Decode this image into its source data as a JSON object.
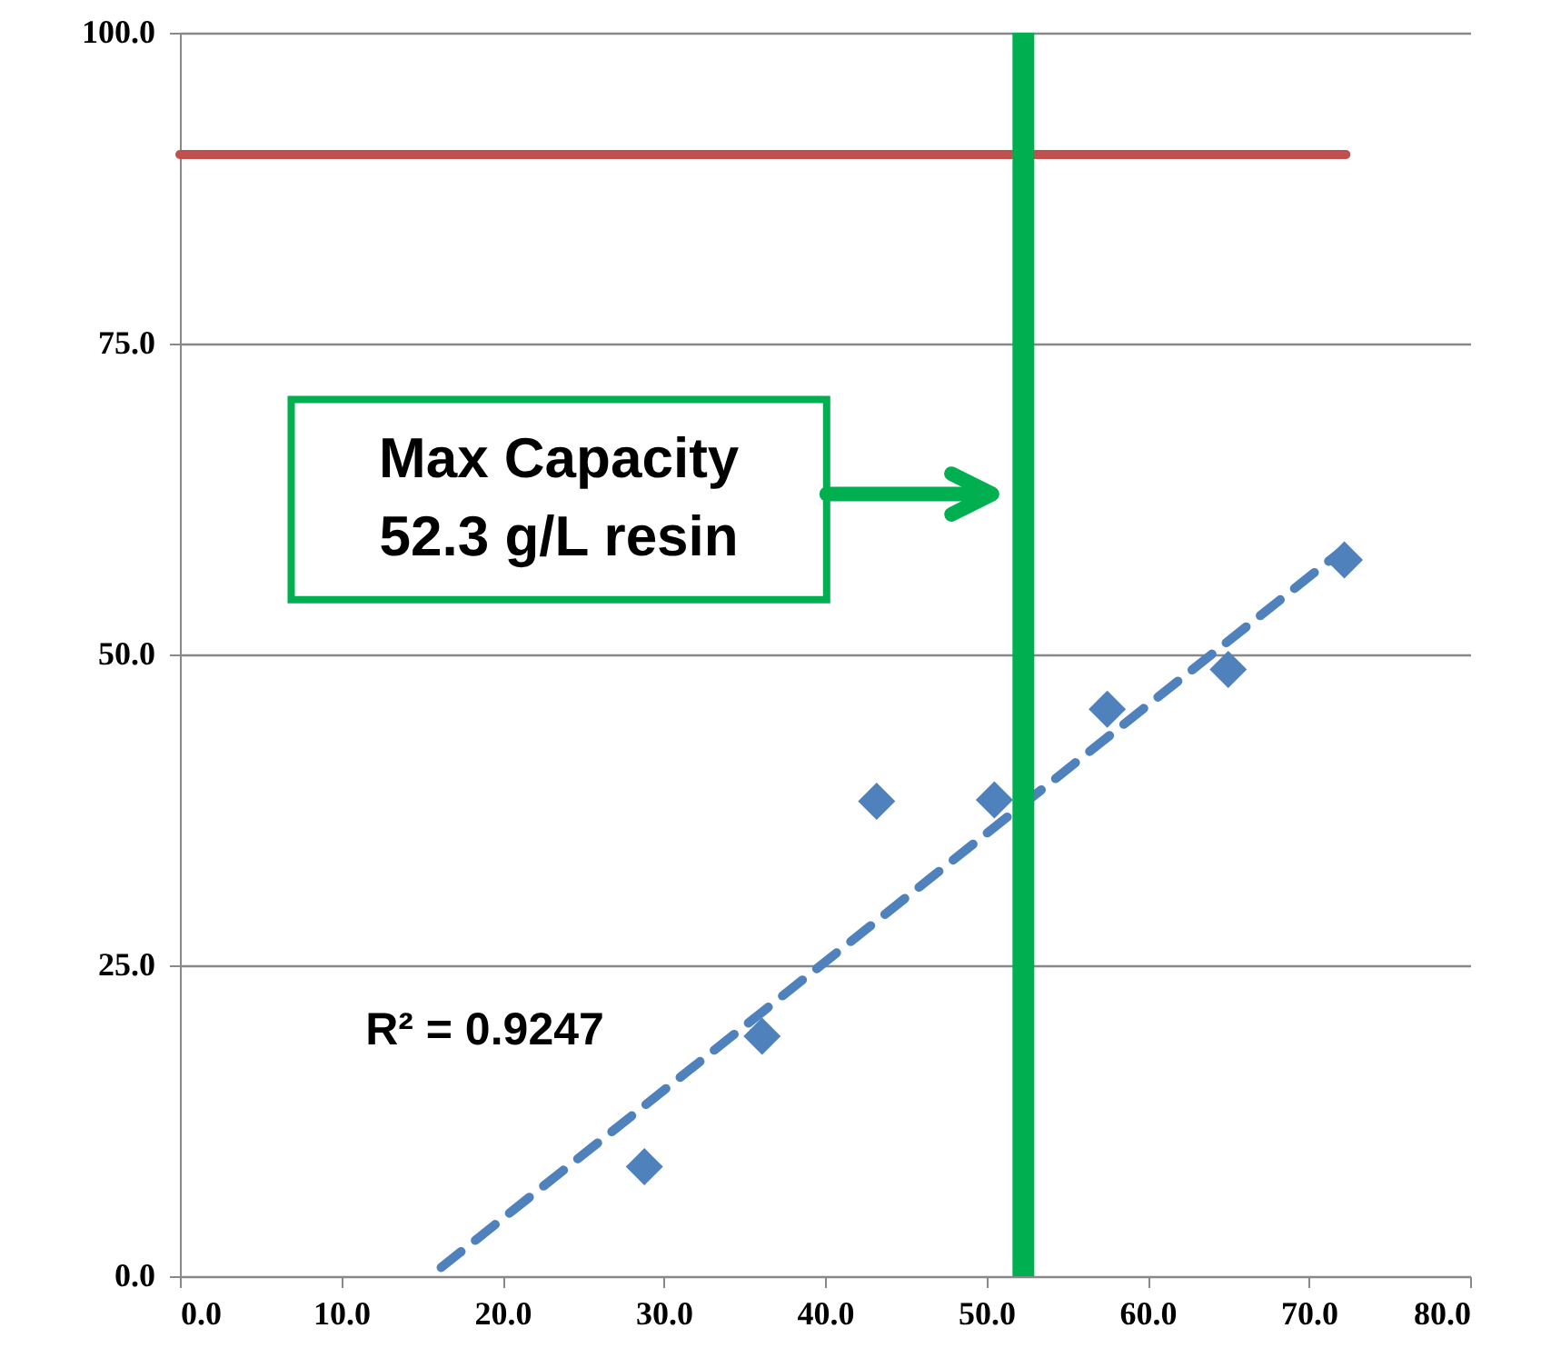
{
  "chart_data": {
    "type": "scatter",
    "x": [
      28.8,
      36.1,
      43.2,
      50.5,
      57.5,
      65.0,
      72.2
    ],
    "series": [
      {
        "color": "#4f81bd",
        "marker": "diamond",
        "values": [
          8.8,
          19.3,
          38.2,
          38.3,
          45.6,
          48.8,
          57.6
        ]
      },
      {
        "type": "line",
        "color": "#4f81bd",
        "line_style": "dashed",
        "x": [
          16.2,
          72.2
        ],
        "values": [
          0.7,
          58.5
        ]
      },
      {
        "type": "line",
        "color": "#c0504d",
        "line_style": "solid",
        "x": [
          0,
          72.3
        ],
        "values": [
          90.2,
          90.2
        ]
      }
    ],
    "ref_lines": [
      {
        "axis": "x",
        "value": 52.3,
        "color": "#00b050"
      }
    ],
    "annotations": [
      "Max Capacity\n52.3 g/L resin",
      "R² = 0.9247"
    ],
    "xlim": [
      0,
      80
    ],
    "xticks": [
      {
        "value": 0,
        "label": "0.0"
      },
      {
        "value": 10,
        "label": "10.0"
      },
      {
        "value": 20,
        "label": "20.0"
      },
      {
        "value": 30,
        "label": "30.0"
      },
      {
        "value": 40,
        "label": "40.0"
      },
      {
        "value": 50,
        "label": "50.0"
      },
      {
        "value": 60,
        "label": "60.0"
      },
      {
        "value": 70,
        "label": "70.0"
      },
      {
        "value": 80,
        "label": "80.0"
      }
    ],
    "ylim": [
      0,
      100
    ],
    "yticks": [
      {
        "value": 0,
        "label": "0.0"
      },
      {
        "value": 25,
        "label": "25.0"
      },
      {
        "value": 50,
        "label": "50.0"
      },
      {
        "value": 75,
        "label": "75.0"
      },
      {
        "value": 100,
        "label": "100.0"
      }
    ],
    "grid": "y"
  }
}
